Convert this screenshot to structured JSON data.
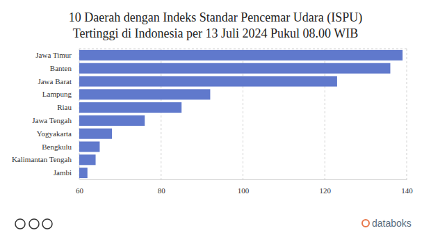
{
  "chart_data": {
    "type": "bar",
    "title": [
      "10 Daerah dengan Indeks Standar Pencemar Udara (ISPU)",
      "Tertinggi di Indonesia per 13 Juli 2024 Pukul 08.00 WIB"
    ],
    "orientation": "horizontal",
    "categories": [
      "Jawa Timur",
      "Banten",
      "Jawa Barat",
      "Lampung",
      "Riau",
      "Jawa Tengah",
      "Yogyakarta",
      "Bengkulu",
      "Kalimantan Tengah",
      "Jambi"
    ],
    "values": [
      139,
      136,
      123,
      92,
      85,
      76,
      68,
      65,
      64,
      62
    ],
    "color": "#6079cc",
    "xlim": [
      60,
      140
    ],
    "xticks": [
      60,
      80,
      100,
      120,
      140
    ],
    "grid": true,
    "source": "databoks"
  }
}
